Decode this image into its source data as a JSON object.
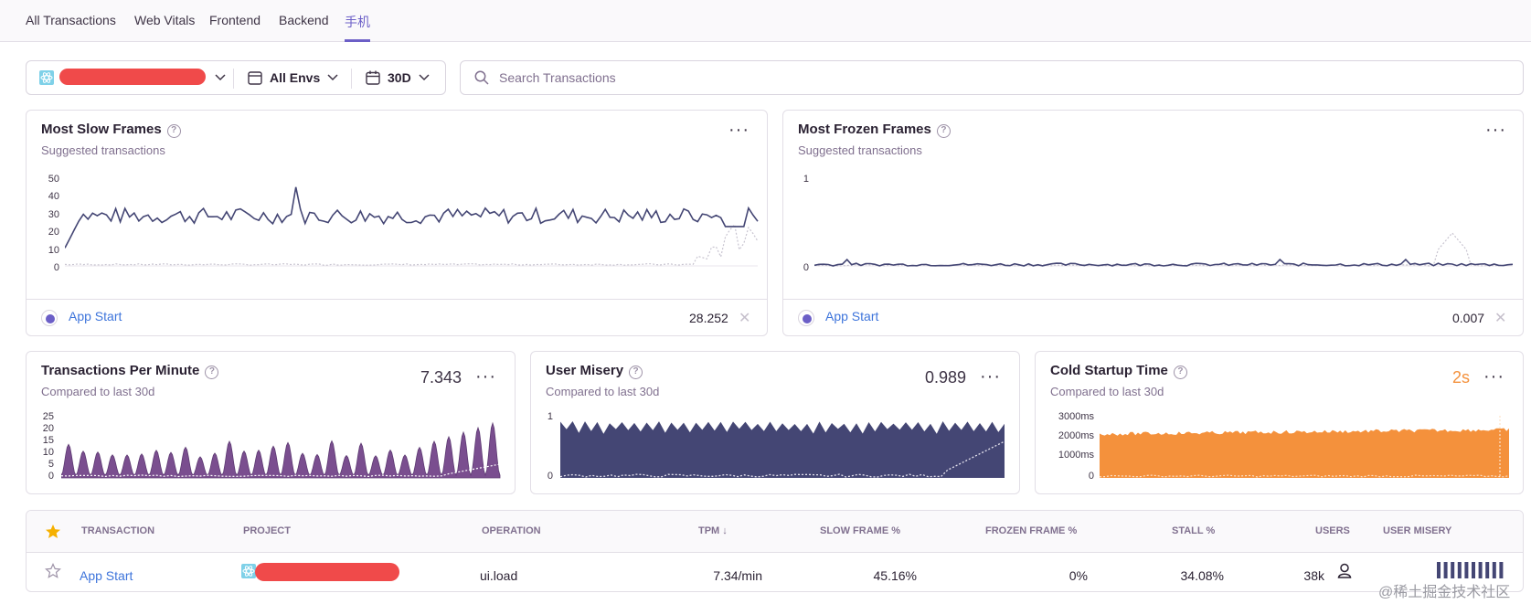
{
  "tabs": [
    "All Transactions",
    "Web Vitals",
    "Frontend",
    "Backend",
    "手机"
  ],
  "filters": {
    "env": "All Envs",
    "period": "30D",
    "search_placeholder": "Search Transactions"
  },
  "slow_frames": {
    "title": "Most Slow Frames",
    "subtitle": "Suggested transactions",
    "y_ticks": [
      "50",
      "40",
      "30",
      "20",
      "10",
      "0"
    ],
    "legend": "App Start",
    "value": "28.252"
  },
  "frozen_frames": {
    "title": "Most Frozen Frames",
    "subtitle": "Suggested transactions",
    "y_ticks": [
      "1",
      "0"
    ],
    "legend": "App Start",
    "value": "0.007"
  },
  "tpm": {
    "title": "Transactions Per Minute",
    "subtitle": "Compared to last 30d",
    "value": "7.343",
    "y_ticks": [
      "25",
      "20",
      "15",
      "10",
      "5",
      "0"
    ]
  },
  "misery": {
    "title": "User Misery",
    "subtitle": "Compared to last 30d",
    "value": "0.989",
    "y_ticks": [
      "1",
      "0"
    ]
  },
  "cold": {
    "title": "Cold Startup Time",
    "subtitle": "Compared to last 30d",
    "value": "2s",
    "y_ticks": [
      "3000ms",
      "2000ms",
      "1000ms",
      "0"
    ]
  },
  "table": {
    "headers": {
      "transaction": "TRANSACTION",
      "project": "PROJECT",
      "operation": "OPERATION",
      "tpm": "TPM ↓",
      "slow": "SLOW FRAME %",
      "frozen": "FROZEN FRAME %",
      "stall": "STALL %",
      "users": "USERS",
      "misery": "USER MISERY"
    },
    "row": {
      "transaction": "App Start",
      "operation": "ui.load",
      "tpm": "7.34/min",
      "slow": "45.16%",
      "frozen": "0%",
      "stall": "34.08%",
      "users": "38k"
    }
  },
  "watermark": "@稀土掘金技术社区",
  "colors": {
    "accent": "#6c5fc7",
    "series_dark": "#444674",
    "tpm_fill": "#7a4e8f",
    "cold_fill": "#f4913c",
    "link": "#3d74db"
  }
}
